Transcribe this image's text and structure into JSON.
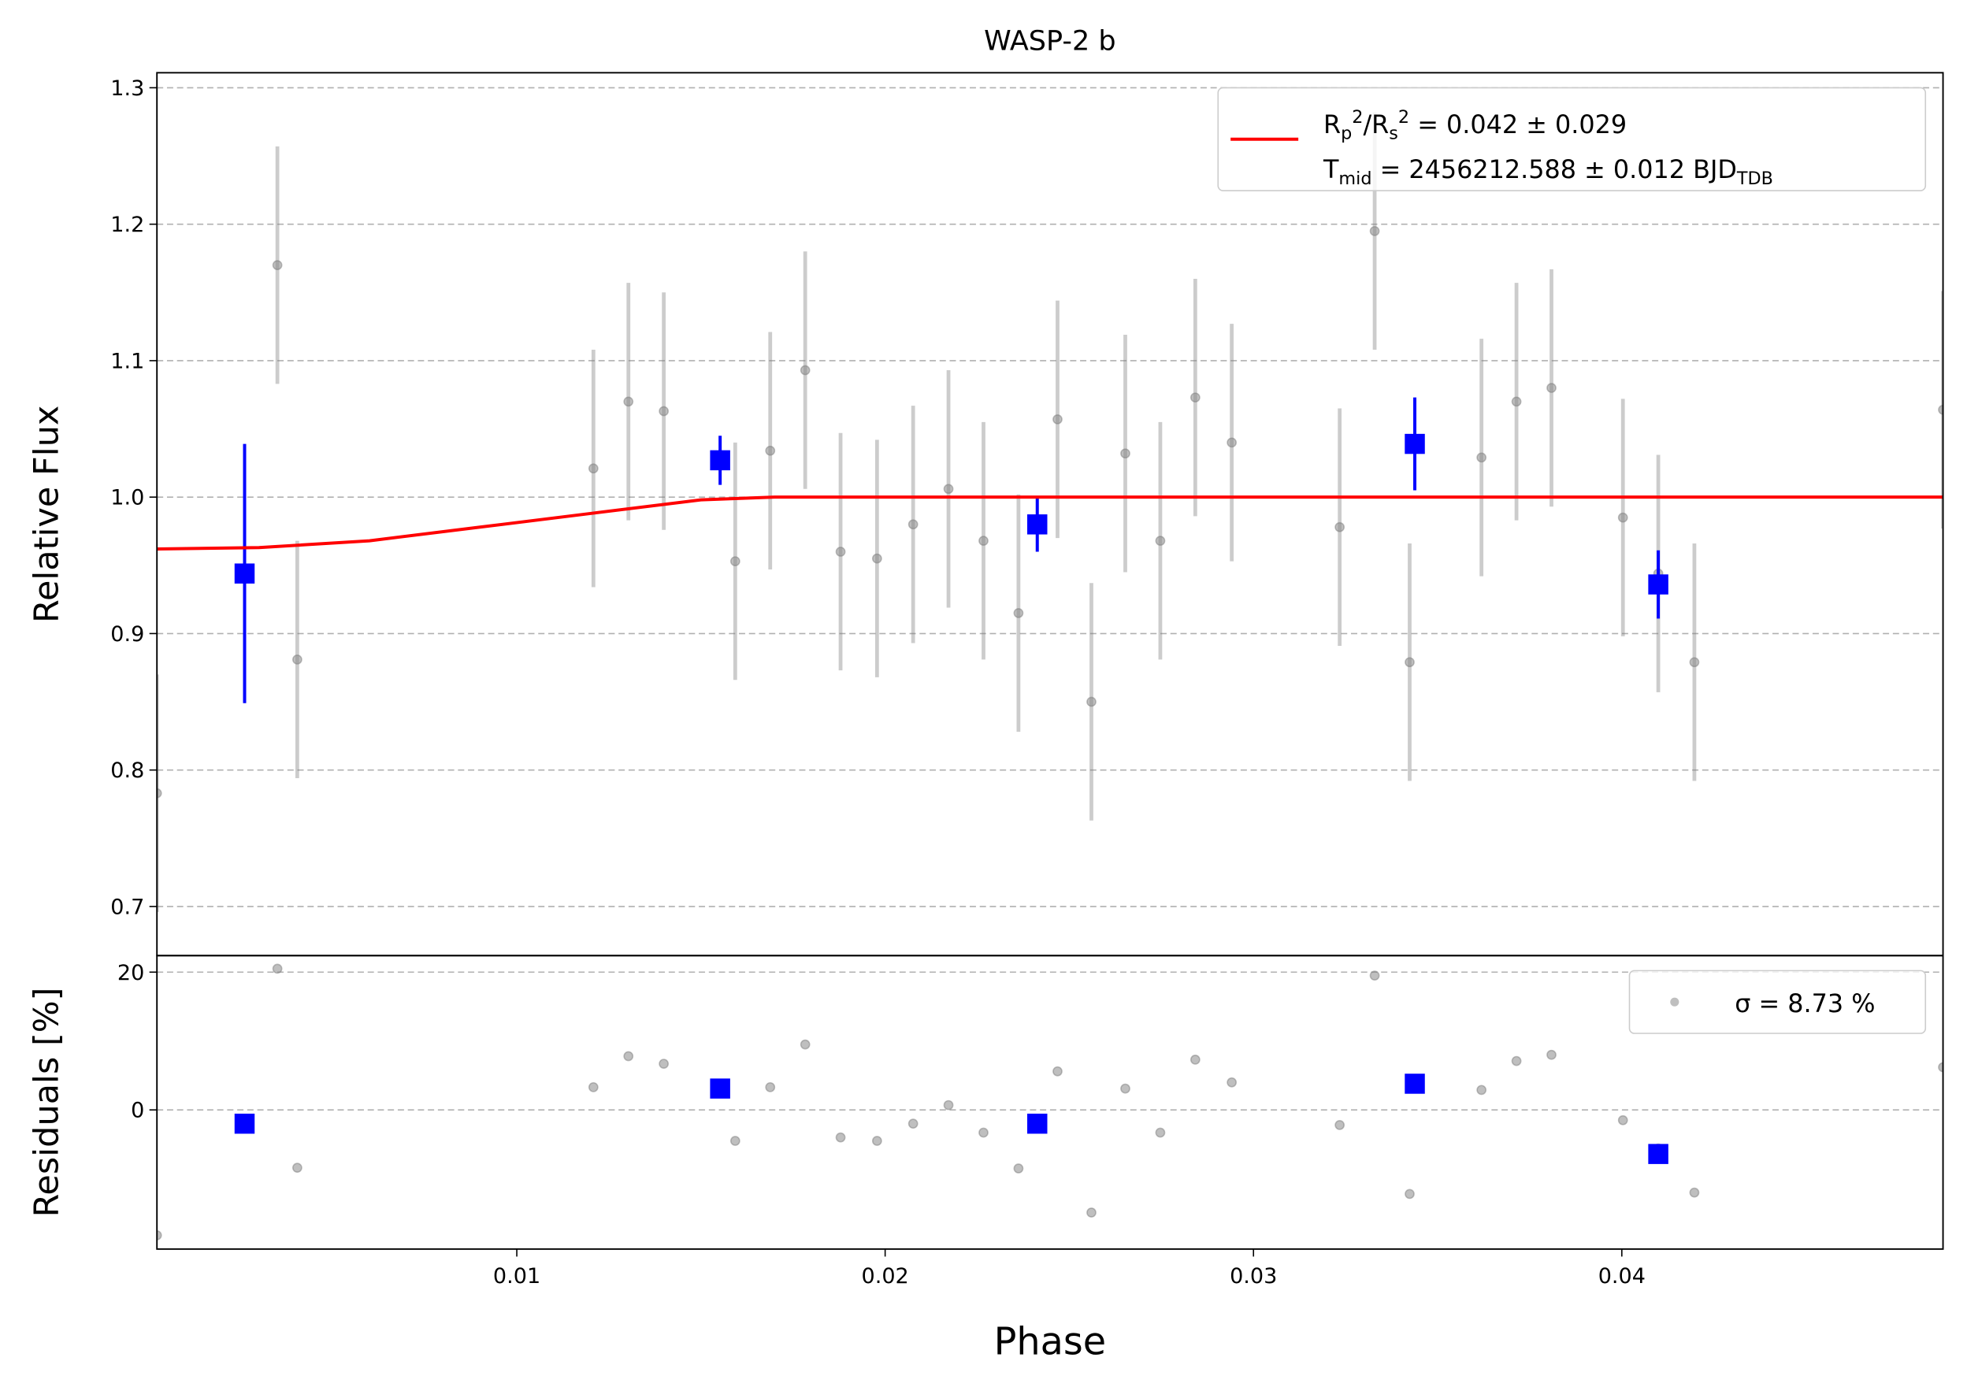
{
  "chart_data": [
    {
      "type": "scatter",
      "title": "WASP-2 b",
      "ylabel": "Relative Flux",
      "xlim": [
        0.00023,
        0.04872
      ],
      "ylim": [
        0.664,
        1.311
      ],
      "yticks": [
        0.7,
        0.8,
        0.9,
        {
          "value": 1,
          "label": "1.0"
        },
        1.1,
        1.2,
        1.3
      ],
      "grid": true,
      "legend": "upper right",
      "series": [
        {
          "color": "#808080",
          "x": [
            0.00023,
            0.0035,
            0.00404,
            0.01208,
            0.01303,
            0.01399,
            0.01593,
            0.01688,
            0.01783,
            0.01879,
            0.01978,
            0.02076,
            0.02172,
            0.02267,
            0.02362,
            0.02468,
            0.0256,
            0.02652,
            0.02747,
            0.02842,
            0.02941,
            0.03234,
            0.03329,
            0.03424,
            0.03619,
            0.03714,
            0.03809,
            0.04003,
            0.04099,
            0.04197,
            0.04872
          ],
          "values": [
            0.783,
            1.17,
            0.881,
            1.021,
            1.07,
            1.063,
            0.953,
            1.034,
            1.093,
            0.96,
            0.955,
            0.98,
            1.006,
            0.968,
            0.915,
            1.057,
            0.85,
            1.032,
            0.968,
            1.073,
            1.04,
            0.978,
            1.195,
            0.879,
            1.029,
            1.07,
            1.08,
            0.985,
            0.944,
            0.879,
            1.064
          ],
          "errors": [
            0.087,
            0.087,
            0.087,
            0.087,
            0.087,
            0.087,
            0.087,
            0.087,
            0.087,
            0.087,
            0.087,
            0.087,
            0.087,
            0.087,
            0.087,
            0.087,
            0.087,
            0.087,
            0.087,
            0.087,
            0.087,
            0.087,
            0.087,
            0.087,
            0.087,
            0.087,
            0.087,
            0.087,
            0.087,
            0.087,
            0.087
          ]
        },
        {
          "color": "#0000ff",
          "marker": "square",
          "x": [
            0.00261,
            0.01552,
            0.02413,
            0.03438,
            0.04099
          ],
          "values": [
            0.944,
            1.027,
            0.98,
            1.039,
            0.936
          ],
          "errors": [
            0.095,
            0.018,
            0.02,
            0.034,
            0.025
          ]
        },
        {
          "color": "#ff0000",
          "style": "line",
          "name": [
            "R_{p}^{2}/R_{s}^{2} = 0.042 ± 0.029",
            "T_{mid} = 2456212.588 ± 0.012 BJD_{TDB}"
          ],
          "x": [
            0.00023,
            0.003,
            0.006,
            0.009,
            0.012,
            0.015,
            0.017,
            0.04872
          ],
          "values": [
            0.962,
            0.963,
            0.968,
            0.978,
            0.988,
            0.998,
            1.0,
            1.0
          ]
        }
      ]
    },
    {
      "type": "scatter",
      "ylabel": "Residuals [%]",
      "xlabel": "Phase",
      "xlim": [
        0.00023,
        0.04872
      ],
      "ylim": [
        -20.2,
        22.4
      ],
      "xticks": [
        0.01,
        0.02,
        0.03,
        0.04
      ],
      "yticks": [
        0,
        20
      ],
      "grid": true,
      "legend": "upper right",
      "series": [
        {
          "color": "#808080",
          "name": "σ = 8.73 %",
          "x": [
            0.00023,
            0.0035,
            0.00404,
            0.01208,
            0.01303,
            0.01399,
            0.01593,
            0.01688,
            0.01783,
            0.01879,
            0.01978,
            0.02076,
            0.02172,
            0.02267,
            0.02362,
            0.02468,
            0.0256,
            0.02652,
            0.02747,
            0.02842,
            0.02941,
            0.03234,
            0.03329,
            0.03424,
            0.03619,
            0.03714,
            0.03809,
            0.04003,
            0.04099,
            0.04197,
            0.04872
          ],
          "values": [
            -18.2,
            20.5,
            -8.4,
            3.3,
            7.8,
            6.7,
            -4.5,
            3.3,
            9.5,
            -4.0,
            -4.5,
            -2.0,
            0.7,
            -3.3,
            -8.5,
            5.6,
            -14.9,
            3.1,
            -3.3,
            7.3,
            4.0,
            -2.2,
            19.5,
            -12.2,
            2.9,
            7.1,
            8.0,
            -1.5,
            -5.6,
            -12.0,
            6.2
          ]
        },
        {
          "color": "#0000ff",
          "marker": "square",
          "x": [
            0.00261,
            0.01552,
            0.02413,
            0.03438,
            0.04099
          ],
          "values": [
            -2.0,
            3.1,
            -2.0,
            3.8,
            -6.4
          ]
        }
      ]
    }
  ]
}
